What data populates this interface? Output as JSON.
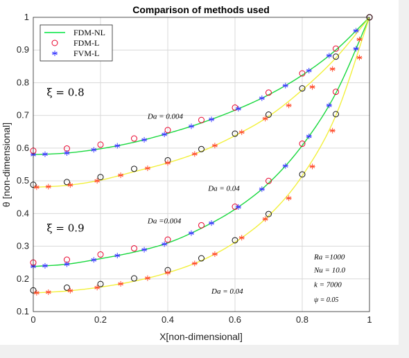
{
  "chart_data": {
    "type": "line",
    "title": "Comparison of methods used",
    "xlabel": "X[non-dimensional]",
    "ylabel": "θ  [non-dimensional]",
    "xlim": [
      0,
      1
    ],
    "ylim": [
      0.1,
      1
    ],
    "xticks": [
      "0",
      "0.2",
      "0.4",
      "0.6",
      "0.8",
      "1"
    ],
    "yticks": [
      "0.1",
      "0.2",
      "0.3",
      "0.4",
      "0.5",
      "0.6",
      "0.7",
      "0.8",
      "0.9",
      "1"
    ],
    "grid": true,
    "legend_position": "top-left",
    "legend": [
      {
        "label": "FDM-NL",
        "style": "line",
        "color": "#00e640"
      },
      {
        "label": "FDM-L",
        "style": "circle",
        "color": "#e8002a"
      },
      {
        "label": "FVM-L",
        "style": "star",
        "color": "#3a3aff"
      }
    ],
    "curve_colors": {
      "green": "#16d83c",
      "yellow": "#f2f03a"
    },
    "marker_colors": {
      "red": "#e8002a",
      "black": "#111111",
      "blue": "#3a3aff",
      "orange_red": "#ff4a2a"
    },
    "series": [
      {
        "name": "ξ = 0.8, Da = 0.004",
        "color": "green",
        "circles": "red",
        "stars": "blue",
        "x": [
          0,
          0.1,
          0.2,
          0.3,
          0.4,
          0.5,
          0.6,
          0.7,
          0.8,
          0.9,
          1
        ],
        "y": [
          0.58,
          0.585,
          0.598,
          0.618,
          0.645,
          0.677,
          0.716,
          0.763,
          0.823,
          0.9,
          1
        ]
      },
      {
        "name": "ξ = 0.8, Da = 0.04",
        "color": "yellow",
        "circles": "black",
        "stars": "orange_red",
        "x": [
          0,
          0.1,
          0.2,
          0.3,
          0.4,
          0.5,
          0.6,
          0.7,
          0.8,
          0.9,
          1
        ],
        "y": [
          0.48,
          0.486,
          0.502,
          0.528,
          0.555,
          0.59,
          0.638,
          0.697,
          0.778,
          0.876,
          1
        ]
      },
      {
        "name": "ξ = 0.9, Da = 0.004",
        "color": "green",
        "circles": "red",
        "stars": "blue",
        "x": [
          0,
          0.1,
          0.2,
          0.3,
          0.4,
          0.5,
          0.6,
          0.7,
          0.8,
          0.9,
          1
        ],
        "y": [
          0.238,
          0.245,
          0.262,
          0.282,
          0.31,
          0.355,
          0.413,
          0.493,
          0.608,
          0.768,
          1
        ]
      },
      {
        "name": "ξ = 0.9, Da = 0.04",
        "color": "yellow",
        "circles": "black",
        "stars": "orange_red",
        "x": [
          0,
          0.1,
          0.2,
          0.3,
          0.4,
          0.5,
          0.6,
          0.7,
          0.8,
          0.9,
          1
        ],
        "y": [
          0.157,
          0.163,
          0.175,
          0.193,
          0.219,
          0.256,
          0.312,
          0.393,
          0.515,
          0.7,
          1
        ]
      }
    ],
    "annotations": [
      {
        "text": "ξ = 0.8",
        "x": 0.04,
        "y": 0.76,
        "size": "large"
      },
      {
        "text": "ξ = 0.9",
        "x": 0.04,
        "y": 0.345,
        "size": "large"
      },
      {
        "text": "Da = 0.004",
        "x": 0.34,
        "y": 0.69,
        "size": "small"
      },
      {
        "text": "Da = 0.04",
        "x": 0.52,
        "y": 0.47,
        "size": "small"
      },
      {
        "text": "Da =0.004",
        "x": 0.34,
        "y": 0.37,
        "size": "small"
      },
      {
        "text": "Da = 0.04",
        "x": 0.53,
        "y": 0.155,
        "size": "small"
      },
      {
        "text": "Ra =1000",
        "x": 0.835,
        "y": 0.26,
        "size": "small"
      },
      {
        "text": "Nu = 10.0",
        "x": 0.835,
        "y": 0.22,
        "size": "small"
      },
      {
        "text": "k = 7000",
        "x": 0.835,
        "y": 0.175,
        "size": "small"
      },
      {
        "text": "ψ = 0.05",
        "x": 0.835,
        "y": 0.13,
        "size": "tiny"
      }
    ]
  }
}
